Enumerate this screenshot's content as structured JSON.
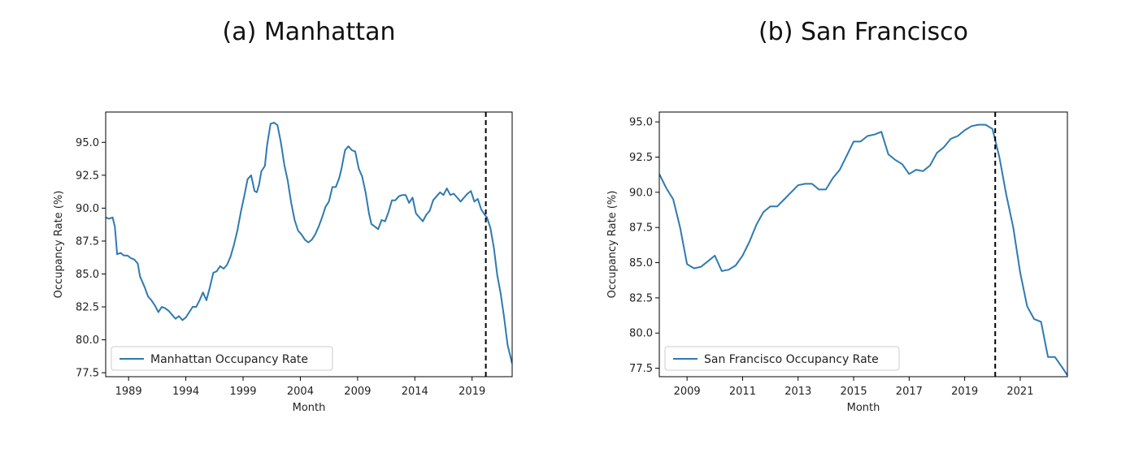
{
  "chart_data": [
    {
      "type": "line",
      "title": "(a) Manhattan",
      "xlabel": "Month",
      "ylabel": "Occupancy Rate (%)",
      "xlim": [
        1987.0,
        2022.5
      ],
      "ylim": [
        77.2,
        97.3
      ],
      "xticks": [
        1989,
        1994,
        1999,
        2004,
        2009,
        2014,
        2019
      ],
      "xtick_labels": [
        "1989",
        "1994",
        "1999",
        "2004",
        "2009",
        "2014",
        "2019"
      ],
      "yticks": [
        77.5,
        80.0,
        82.5,
        85.0,
        87.5,
        90.0,
        92.5,
        95.0
      ],
      "ytick_labels": [
        "77.5",
        "80.0",
        "82.5",
        "85.0",
        "87.5",
        "90.0",
        "92.5",
        "95.0"
      ],
      "grid": false,
      "legend": "lower-left",
      "color": "#2e7ab0",
      "vline": 2020.2,
      "series": [
        {
          "name": "Manhattan Occupancy Rate",
          "x": [
            1987.0,
            1987.3,
            1987.6,
            1987.8,
            1988.0,
            1988.3,
            1988.6,
            1988.9,
            1989.2,
            1989.5,
            1989.8,
            1990.0,
            1990.4,
            1990.7,
            1991.0,
            1991.3,
            1991.6,
            1991.9,
            1992.2,
            1992.5,
            1992.8,
            1993.1,
            1993.4,
            1993.7,
            1994.0,
            1994.3,
            1994.6,
            1994.9,
            1995.2,
            1995.5,
            1995.8,
            1996.1,
            1996.4,
            1996.7,
            1997.0,
            1997.3,
            1997.6,
            1997.9,
            1998.2,
            1998.5,
            1998.8,
            1999.1,
            1999.4,
            1999.7,
            2000.0,
            2000.2,
            2000.4,
            2000.6,
            2000.9,
            2001.1,
            2001.4,
            2001.7,
            2002.0,
            2002.3,
            2002.6,
            2002.9,
            2003.2,
            2003.5,
            2003.8,
            2004.1,
            2004.4,
            2004.7,
            2005.0,
            2005.3,
            2005.6,
            2005.9,
            2006.2,
            2006.5,
            2006.8,
            2007.1,
            2007.4,
            2007.6,
            2007.9,
            2008.2,
            2008.5,
            2008.8,
            2009.1,
            2009.4,
            2009.7,
            2010.0,
            2010.2,
            2010.5,
            2010.8,
            2011.1,
            2011.4,
            2011.7,
            2012.0,
            2012.3,
            2012.6,
            2012.9,
            2013.2,
            2013.5,
            2013.8,
            2014.1,
            2014.4,
            2014.7,
            2015.0,
            2015.3,
            2015.6,
            2015.9,
            2016.2,
            2016.5,
            2016.8,
            2017.1,
            2017.4,
            2017.7,
            2018.0,
            2018.3,
            2018.6,
            2018.9,
            2019.2,
            2019.5,
            2019.8,
            2020.1,
            2020.3,
            2020.6,
            2020.9,
            2021.2,
            2021.5,
            2021.8,
            2022.1,
            2022.5
          ],
          "values": [
            89.3,
            89.2,
            89.3,
            88.6,
            86.5,
            86.6,
            86.4,
            86.4,
            86.2,
            86.1,
            85.8,
            84.8,
            84.0,
            83.3,
            83.0,
            82.6,
            82.1,
            82.5,
            82.4,
            82.2,
            81.9,
            81.6,
            81.8,
            81.5,
            81.7,
            82.1,
            82.5,
            82.5,
            83.0,
            83.6,
            83.0,
            84.0,
            85.1,
            85.2,
            85.6,
            85.4,
            85.7,
            86.3,
            87.2,
            88.3,
            89.7,
            90.9,
            92.2,
            92.5,
            91.3,
            91.2,
            91.8,
            92.8,
            93.2,
            94.8,
            96.4,
            96.5,
            96.3,
            95.0,
            93.3,
            92.1,
            90.4,
            89.1,
            88.3,
            88.0,
            87.6,
            87.4,
            87.6,
            88.0,
            88.6,
            89.3,
            90.1,
            90.5,
            91.6,
            91.6,
            92.3,
            93.0,
            94.4,
            94.7,
            94.4,
            94.3,
            93.0,
            92.4,
            91.2,
            89.6,
            88.8,
            88.6,
            88.4,
            89.1,
            89.0,
            89.7,
            90.6,
            90.6,
            90.9,
            91.0,
            91.0,
            90.4,
            90.8,
            89.6,
            89.3,
            89.0,
            89.5,
            89.8,
            90.6,
            90.9,
            91.2,
            91.0,
            91.5,
            91.0,
            91.1,
            90.8,
            90.5,
            90.8,
            91.1,
            91.3,
            90.5,
            90.7,
            89.9,
            89.5,
            89.3,
            88.5,
            87.0,
            84.9,
            83.5,
            81.7,
            79.6,
            78.2
          ]
        }
      ]
    },
    {
      "type": "line",
      "title": "(b) San Francisco",
      "xlabel": "Month",
      "ylabel": "Occupancy Rate (%)",
      "xlim": [
        2008.0,
        2022.7
      ],
      "ylim": [
        76.9,
        95.7
      ],
      "xticks": [
        2009,
        2011,
        2013,
        2015,
        2017,
        2019,
        2021
      ],
      "xtick_labels": [
        "2009",
        "2011",
        "2013",
        "2015",
        "2017",
        "2019",
        "2021"
      ],
      "yticks": [
        77.5,
        80.0,
        82.5,
        85.0,
        87.5,
        90.0,
        92.5,
        95.0
      ],
      "ytick_labels": [
        "77.5",
        "80.0",
        "82.5",
        "85.0",
        "87.5",
        "90.0",
        "92.5",
        "95.0"
      ],
      "grid": false,
      "legend": "lower-left",
      "color": "#2e7ab0",
      "vline": 2020.1,
      "series": [
        {
          "name": "San Francisco Occupancy Rate",
          "x": [
            2008.0,
            2008.25,
            2008.5,
            2008.75,
            2009.0,
            2009.25,
            2009.5,
            2009.75,
            2010.0,
            2010.25,
            2010.5,
            2010.75,
            2011.0,
            2011.25,
            2011.5,
            2011.75,
            2012.0,
            2012.25,
            2012.5,
            2012.75,
            2013.0,
            2013.25,
            2013.5,
            2013.75,
            2014.0,
            2014.25,
            2014.5,
            2014.75,
            2015.0,
            2015.25,
            2015.5,
            2015.75,
            2016.0,
            2016.25,
            2016.5,
            2016.75,
            2017.0,
            2017.25,
            2017.5,
            2017.75,
            2018.0,
            2018.25,
            2018.5,
            2018.75,
            2019.0,
            2019.25,
            2019.5,
            2019.75,
            2020.0,
            2020.25,
            2020.5,
            2020.75,
            2021.0,
            2021.25,
            2021.5,
            2021.75,
            2022.0,
            2022.25,
            2022.5,
            2022.7
          ],
          "values": [
            91.3,
            90.3,
            89.5,
            87.5,
            84.9,
            84.6,
            84.7,
            85.1,
            85.5,
            84.4,
            84.5,
            84.8,
            85.5,
            86.5,
            87.7,
            88.6,
            89.0,
            89.0,
            89.5,
            90.0,
            90.5,
            90.6,
            90.6,
            90.2,
            90.2,
            91.0,
            91.6,
            92.6,
            93.6,
            93.6,
            94.0,
            94.1,
            94.3,
            92.7,
            92.3,
            92.0,
            91.3,
            91.6,
            91.5,
            91.9,
            92.8,
            93.2,
            93.8,
            94.0,
            94.4,
            94.7,
            94.8,
            94.8,
            94.5,
            92.5,
            89.8,
            87.5,
            84.3,
            81.9,
            81.0,
            80.8,
            78.3,
            78.3,
            77.6,
            77.0
          ]
        }
      ]
    }
  ]
}
